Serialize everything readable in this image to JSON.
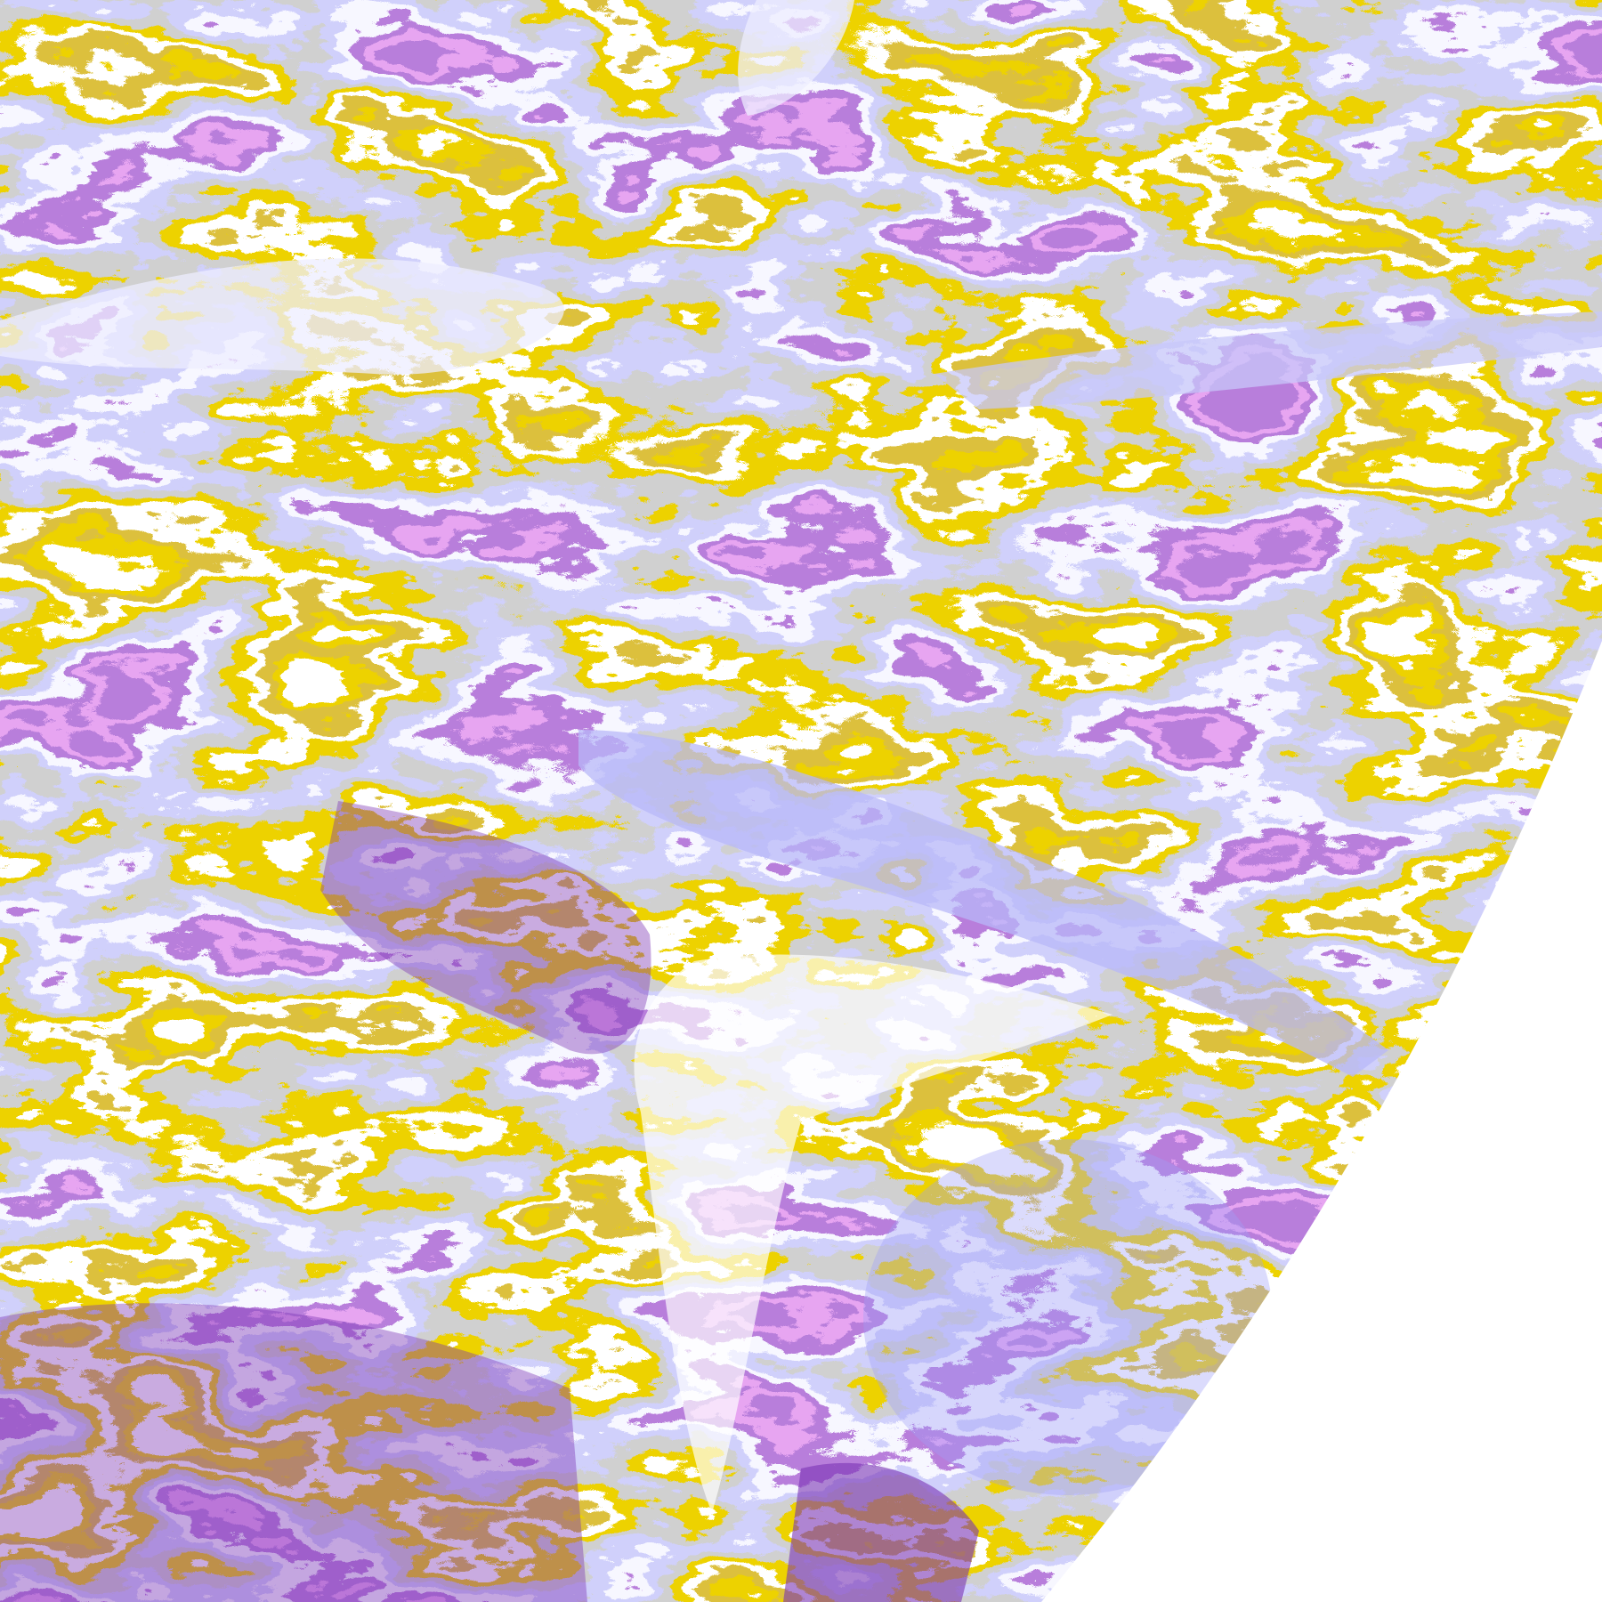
{
  "image": {
    "kind": "false-color satellite cloud imagery, earth limb at lower right",
    "palette": {
      "clear": "#ffffff",
      "gold": "#d9a600",
      "dark_gold": "#b8880c",
      "gray": "#a0a0a0",
      "lavender": "#a0a0f8",
      "pale_lavender": "#eeeeff",
      "purple": "#7b35b5",
      "magenta": "#d060e0",
      "space": "#ffffff"
    }
  }
}
